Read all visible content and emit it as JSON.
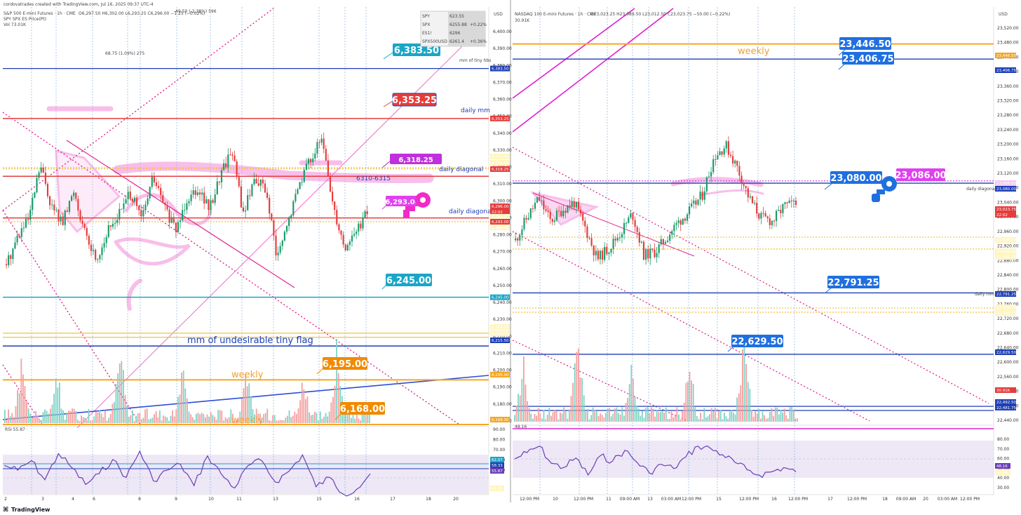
{
  "footer": {
    "brand": "TradingView"
  },
  "left": {
    "header": {
      "created": "cordovatrades created with TradingView.com, Jul 16, 2025 09:37 UTC-4",
      "symbol": "S&P 500 E-mini Futures · 1h · CME",
      "ohlc": "O6,297.50 H6,302.00 L6,293.25 C6,296.00 −1.25 (−0.02%)",
      "measure": "-49.50 (-2.38%) 596",
      "line2": "SPY SPX ES Price(Pt)",
      "vol": "Vol 73.01K",
      "currency": "USD"
    },
    "watch": [
      {
        "sym": "SPY",
        "last": "623.55",
        "chg": ""
      },
      {
        "sym": "SPX",
        "last": "6255.88",
        "chg": "+0.22%"
      },
      {
        "sym": "ES1!",
        "last": "6296",
        "chg": ""
      },
      {
        "sym": "SPX500USD",
        "last": "6261.4",
        "chg": "+0.36%"
      }
    ],
    "measure_label": "68.75 (1.09%) 275",
    "rsi_legend": "RSI 55.87 ·",
    "date_ticks": [
      "2",
      "3",
      "4",
      "6",
      "8",
      "9",
      "10",
      "11",
      "13",
      "15",
      "16",
      "17",
      "18",
      "20"
    ],
    "annotations": {
      "daily_mm": "daily mm",
      "daily_diagonal": "daily diagonal",
      "daily_diagonal_2": "daily diagonal",
      "range": "6310-6315",
      "mm_flag": "mm of undesirable tiny flag",
      "weekly": "weekly",
      "weekly_2": "weekly",
      "mm_label": "mm of tiny hbs"
    },
    "callouts": [
      "6,383.50",
      "6,353.25",
      "6,318.25",
      "6,293.00",
      "6,245.00",
      "6,195.00",
      "6,168.00"
    ],
    "price_axis": [
      "6,400.00",
      "6,390.00",
      "6,380.00",
      "6,370.00",
      "6,360.00",
      "6,350.00",
      "6,340.00",
      "6,330.00",
      "6,320.00",
      "6,310.00",
      "6,300.00",
      "6,290.00",
      "6,280.00",
      "6,270.00",
      "6,260.00",
      "6,250.00",
      "6,240.00",
      "6,230.00",
      "6,220.00",
      "6,210.00",
      "6,200.00",
      "6,190.00",
      "6,180.00",
      "6,170.00"
    ],
    "rsi_axis": [
      "90.00",
      "80.00",
      "70.00",
      "60.00",
      "50.00"
    ],
    "axis_tags": [
      "6,383.50",
      "6,353.25",
      "6,323.50",
      "6,322.75",
      "6,318.25",
      "6,296.00",
      "22:02",
      "6,294.00",
      "6,293.00",
      "6,290.75",
      "6,245.00",
      "6,223.25",
      "6,220.75",
      "6,215.50",
      "6,195.00",
      "73.01K",
      "6,168.00"
    ],
    "rsi_tags": [
      "62.07",
      "58.33",
      "55.87",
      "41.81"
    ]
  },
  "right": {
    "header": {
      "symbol": "NASDAQ 100 E-mini Futures · 1h · CME",
      "ohlc": "O23,023.25 H23,089.50 L23,012.50 C23,023.75 −50.00 (−0.22%)",
      "vol": "30.91K",
      "currency": "USD"
    },
    "rsi_legend": "48.16",
    "date_ticks": [
      "12:00 PM",
      "10",
      "12:00 PM",
      "11",
      "09:00 AM",
      "13",
      "03:00 AM",
      "12:00 PM",
      "15",
      "12:00 PM",
      "16",
      "12:00 PM",
      "17",
      "12:00 PM",
      "18",
      "09:00 AM",
      "20",
      "03:00 AM",
      "12:00 PM"
    ],
    "annotations": {
      "weekly": "weekly",
      "daily_mm": "daily mm",
      "daily_diagonal": "daily diagonal"
    },
    "callouts": [
      "23,446.50",
      "23,406.75",
      "23,080.00",
      "23,086.00",
      "22,791.25",
      "22,629.50"
    ],
    "price_axis": [
      "23,520.00",
      "23,480.00",
      "23,440.00",
      "23,400.00",
      "23,360.00",
      "23,320.00",
      "23,280.00",
      "23,240.00",
      "23,200.00",
      "23,160.00",
      "23,120.00",
      "23,080.00",
      "23,040.00",
      "23,000.00",
      "22,960.00",
      "22,920.00",
      "22,880.00",
      "22,840.00",
      "22,800.00",
      "22,760.00",
      "22,720.00",
      "22,680.00",
      "22,640.00",
      "22,600.00",
      "22,560.00",
      "22,520.00",
      "22,480.00",
      "22,440.00"
    ],
    "rsi_axis": [
      "80.00",
      "70.00",
      "60.00",
      "50.00",
      "40.00",
      "30.00"
    ],
    "axis_tags": [
      "23,446.50",
      "23,406.75",
      "23,086.00",
      "23,080.00",
      "23,023.75",
      "22:02",
      "22,938.00",
      "22,908.25",
      "22,906.75",
      "22,791.25",
      "22,751.50",
      "22,740.25",
      "22,629.50",
      "30.91K",
      "22,492.50",
      "22,481.75"
    ],
    "rsi_tags": [
      "48.16",
      "44.94"
    ]
  },
  "chart_data": [
    {
      "type": "candlestick",
      "title": "S&P 500 E-mini Futures · 1h · CME",
      "ylabel": "USD",
      "ylim": [
        6165,
        6405
      ],
      "x": [
        "2",
        "3",
        "4",
        "6",
        "8",
        "9",
        "10",
        "11",
        "13",
        "15",
        "16",
        "17",
        "18",
        "20"
      ],
      "close_path": [
        6265,
        6282,
        6292,
        6325,
        6300,
        6290,
        6310,
        6282,
        6268,
        6285,
        6296,
        6308,
        6292,
        6318,
        6300,
        6285,
        6305,
        6312,
        6298,
        6320,
        6335,
        6295,
        6318,
        6310,
        6268,
        6290,
        6315,
        6330,
        6340,
        6300,
        6275,
        6285,
        6296
      ],
      "levels": [
        6383.5,
        6353.25,
        6323.5,
        6322.75,
        6318.25,
        6293.0,
        6290.75,
        6245.0,
        6223.25,
        6220.75,
        6215.5,
        6195.0,
        6168.0
      ],
      "rsi": [
        62,
        58,
        66,
        50,
        72,
        60,
        46,
        55,
        67,
        52,
        74,
        49,
        58,
        63,
        45,
        70,
        55,
        43,
        62,
        66,
        48,
        57,
        71,
        44,
        52,
        38,
        42,
        55
      ]
    },
    {
      "type": "candlestick",
      "title": "NASDAQ 100 E-mini Futures · 1h · CME",
      "ylabel": "USD",
      "ylim": [
        22430,
        23540
      ],
      "x": [
        "10",
        "11",
        "13",
        "15",
        "16",
        "17",
        "18",
        "20"
      ],
      "close_path": [
        22930,
        22990,
        23040,
        22980,
        23010,
        23030,
        22960,
        22880,
        22910,
        22950,
        23000,
        22890,
        22900,
        22940,
        22980,
        23010,
        23050,
        23150,
        23180,
        23120,
        23040,
        22990,
        22980,
        23020,
        23024
      ],
      "levels": [
        23446.5,
        23406.75,
        23086.0,
        23080.0,
        22938.0,
        22908.25,
        22906.75,
        22791.25,
        22751.5,
        22740.25,
        22629.5,
        22492.5,
        22481.75
      ],
      "rsi": [
        60,
        66,
        72,
        56,
        52,
        61,
        45,
        63,
        58,
        68,
        57,
        47,
        55,
        51,
        62,
        72,
        70,
        64,
        57,
        50,
        45,
        48,
        52,
        48
      ]
    }
  ]
}
